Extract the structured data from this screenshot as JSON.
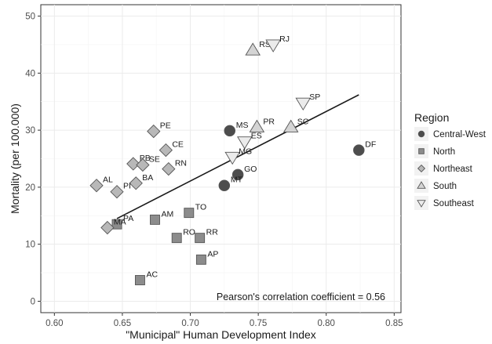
{
  "chart_data": {
    "type": "scatter",
    "title": "",
    "xlabel": "\"Municipal\" Human Development Index",
    "ylabel": "Mortality (per 100.000)",
    "xlim": [
      0.59,
      0.855
    ],
    "ylim": [
      -2,
      52
    ],
    "xticks": [
      "0.60",
      "0.65",
      "0.70",
      "0.75",
      "0.80",
      "0.85"
    ],
    "yticks": [
      "0",
      "10",
      "20",
      "30",
      "40",
      "50"
    ],
    "grid": true,
    "legend": {
      "title": "Region",
      "position": "right",
      "entries": [
        "Central-West",
        "North",
        "Northeast",
        "South",
        "Southeast"
      ]
    },
    "annotation": "Pearson's correlation coefficient = 0.56",
    "trend_line": {
      "x": [
        0.646,
        0.824
      ],
      "y": [
        14.5,
        36.2
      ]
    },
    "series": [
      {
        "name": "Central-West",
        "shape": "circle",
        "color": "#4d4d4d",
        "points": [
          {
            "label": "DF",
            "x": 0.824,
            "y": 26.5
          },
          {
            "label": "MS",
            "x": 0.729,
            "y": 29.9
          },
          {
            "label": "GO",
            "x": 0.735,
            "y": 22.2
          },
          {
            "label": "MT",
            "x": 0.725,
            "y": 20.3
          }
        ]
      },
      {
        "name": "North",
        "shape": "square",
        "color": "#8c8c8c",
        "points": [
          {
            "label": "TO",
            "x": 0.699,
            "y": 15.5
          },
          {
            "label": "AM",
            "x": 0.674,
            "y": 14.3
          },
          {
            "label": "PA",
            "x": 0.646,
            "y": 13.5
          },
          {
            "label": "RO",
            "x": 0.69,
            "y": 11.1
          },
          {
            "label": "RR",
            "x": 0.707,
            "y": 11.1
          },
          {
            "label": "AP",
            "x": 0.708,
            "y": 7.3
          },
          {
            "label": "AC",
            "x": 0.663,
            "y": 3.7
          }
        ]
      },
      {
        "name": "Northeast",
        "shape": "diamond",
        "color": "#b8b8b8",
        "points": [
          {
            "label": "PE",
            "x": 0.673,
            "y": 29.8
          },
          {
            "label": "CE",
            "x": 0.682,
            "y": 26.5
          },
          {
            "label": "PB",
            "x": 0.658,
            "y": 24.1
          },
          {
            "label": "SE",
            "x": 0.665,
            "y": 23.9
          },
          {
            "label": "RN",
            "x": 0.684,
            "y": 23.2
          },
          {
            "label": "BA",
            "x": 0.66,
            "y": 20.7
          },
          {
            "label": "AL",
            "x": 0.631,
            "y": 20.3
          },
          {
            "label": "PI",
            "x": 0.646,
            "y": 19.2
          },
          {
            "label": "MA",
            "x": 0.639,
            "y": 12.9
          }
        ]
      },
      {
        "name": "South",
        "shape": "triangle-up",
        "color": "#d4d4d4",
        "points": [
          {
            "label": "RS",
            "x": 0.746,
            "y": 44.0
          },
          {
            "label": "PR",
            "x": 0.749,
            "y": 30.5
          },
          {
            "label": "SC",
            "x": 0.774,
            "y": 30.5
          }
        ]
      },
      {
        "name": "Southeast",
        "shape": "triangle-down",
        "color": "#ebebeb",
        "points": [
          {
            "label": "RJ",
            "x": 0.761,
            "y": 45.0
          },
          {
            "label": "SP",
            "x": 0.783,
            "y": 34.8
          },
          {
            "label": "ES",
            "x": 0.74,
            "y": 28.0
          },
          {
            "label": "MG",
            "x": 0.731,
            "y": 25.3
          }
        ]
      }
    ]
  }
}
